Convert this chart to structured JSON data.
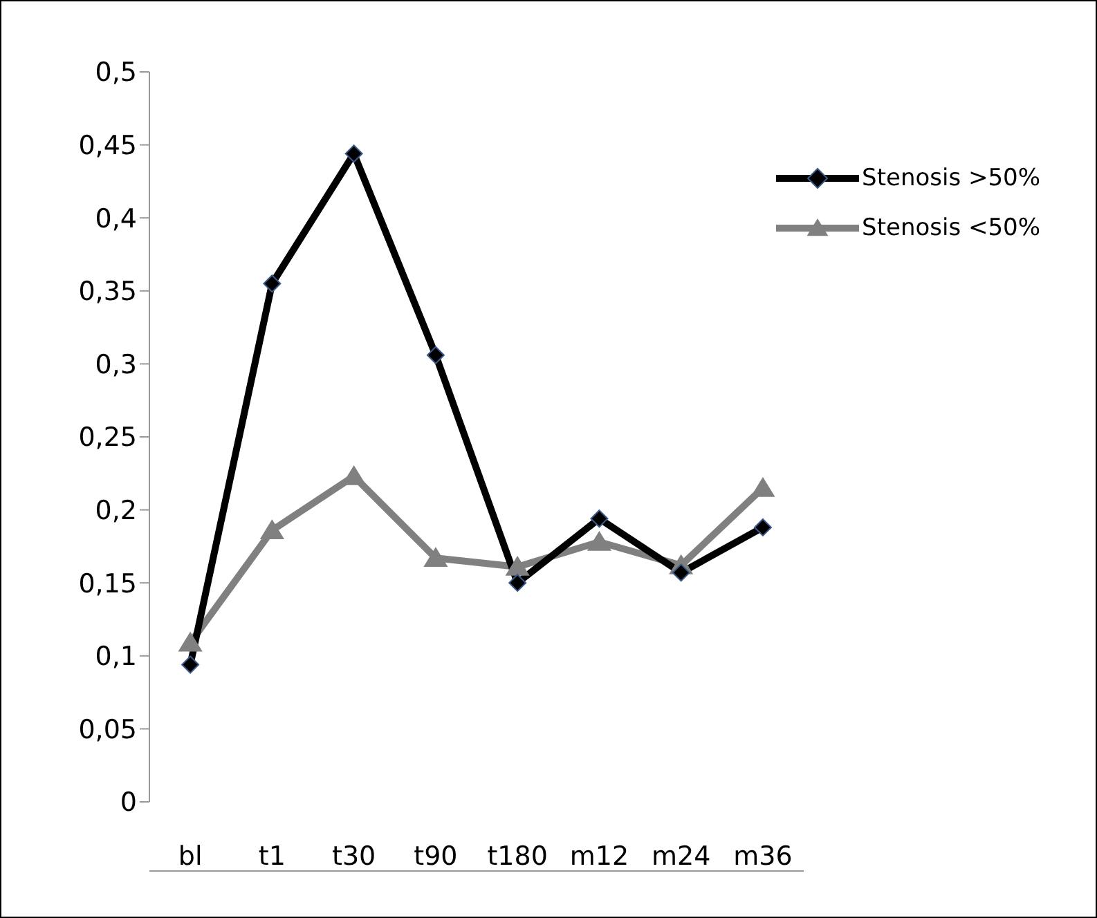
{
  "chart_data": {
    "type": "line",
    "categories": [
      "bl",
      "t1",
      "t30",
      "t90",
      "t180",
      "m12",
      "m24",
      "m36"
    ],
    "series": [
      {
        "name": "Stenosis >50%",
        "color": "#000000",
        "marker": "diamond",
        "values": [
          0.094,
          0.355,
          0.444,
          0.306,
          0.15,
          0.194,
          0.157,
          0.188
        ]
      },
      {
        "name": "Stenosis <50%",
        "color": "#808080",
        "marker": "triangle",
        "values": [
          0.109,
          0.186,
          0.223,
          0.167,
          0.161,
          0.178,
          0.162,
          0.215
        ]
      }
    ],
    "ylim": [
      0,
      0.5
    ],
    "yticks": [
      {
        "value": 0,
        "label": "0"
      },
      {
        "value": 0.05,
        "label": "0,05"
      },
      {
        "value": 0.1,
        "label": "0,1"
      },
      {
        "value": 0.15,
        "label": "0,15"
      },
      {
        "value": 0.2,
        "label": "0,2"
      },
      {
        "value": 0.25,
        "label": "0,25"
      },
      {
        "value": 0.3,
        "label": "0,3"
      },
      {
        "value": 0.35,
        "label": "0,35"
      },
      {
        "value": 0.4,
        "label": "0,4"
      },
      {
        "value": 0.45,
        "label": "0,45"
      },
      {
        "value": 0.5,
        "label": "0,5"
      }
    ],
    "grid": false,
    "legend": "top right",
    "line_style": "solid"
  }
}
